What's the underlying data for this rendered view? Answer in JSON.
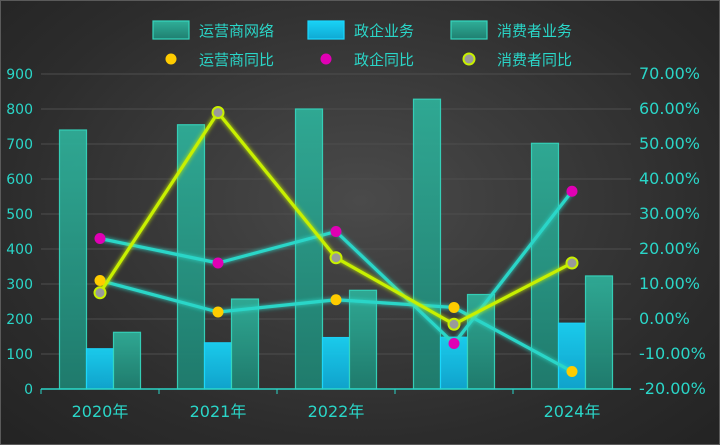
{
  "chart_data": {
    "type": "bar",
    "categories": [
      "2020年",
      "2021年",
      "2022年",
      "",
      "2024年"
    ],
    "series": [
      {
        "name": "运营商网络",
        "kind": "bar",
        "axis": "left",
        "values": [
          740,
          755,
          800,
          828,
          702
        ]
      },
      {
        "name": "政企业务",
        "kind": "bar",
        "axis": "left",
        "values": [
          115,
          132,
          147,
          148,
          188
        ]
      },
      {
        "name": "消费者业务",
        "kind": "bar",
        "axis": "left",
        "values": [
          162,
          257,
          282,
          270,
          323
        ]
      },
      {
        "name": "运营商同比",
        "kind": "line",
        "axis": "right",
        "values": [
          11.0,
          2.0,
          5.5,
          3.3,
          -15.0
        ]
      },
      {
        "name": "政企同比",
        "kind": "line",
        "axis": "right",
        "values": [
          23.0,
          16.0,
          25.0,
          -7.0,
          36.5
        ]
      },
      {
        "name": "消费者同比",
        "kind": "line",
        "axis": "right",
        "values": [
          7.5,
          59.0,
          17.5,
          -1.5,
          16.0
        ]
      }
    ],
    "y_left": {
      "min": 0,
      "max": 900,
      "step": 100,
      "ticks": [
        "0",
        "100",
        "200",
        "300",
        "400",
        "500",
        "600",
        "700",
        "800",
        "900"
      ]
    },
    "y_right": {
      "min": -20,
      "max": 70,
      "step": 10,
      "ticks": [
        "-20.00%",
        "-10.00%",
        "0.00%",
        "10.00%",
        "20.00%",
        "30.00%",
        "40.00%",
        "50.00%",
        "60.00%",
        "70.00%"
      ]
    },
    "legend_position": "top-center",
    "grid": true
  },
  "colors": {
    "bar_network": "#2aa38f",
    "bar_enterprise": "#13c4ee",
    "bar_consumer": "#2aa38f",
    "line_network": "#2ad6c8",
    "line_enterprise": "#2ad6c8",
    "line_consumer": "#c8f000",
    "dot_network": "#ffcc00",
    "dot_enterprise": "#e000b4",
    "dot_consumer": "#9a9a9a",
    "axis_text": "#2ad6c8"
  }
}
